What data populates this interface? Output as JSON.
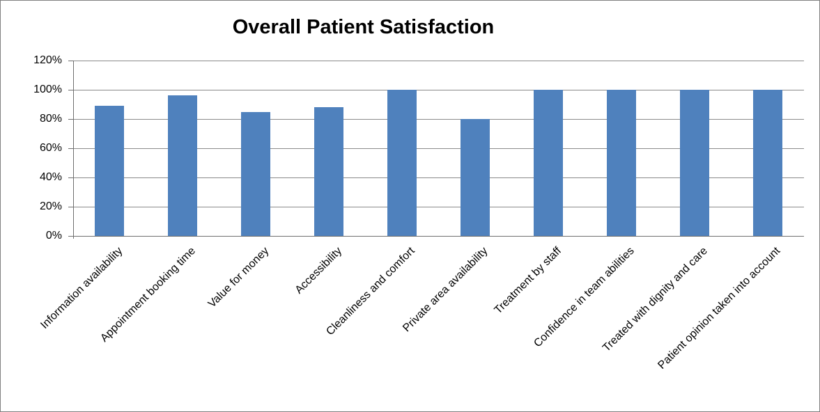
{
  "window": {
    "background": "#FFFFFF",
    "border_color": "#808080"
  },
  "chart_data": {
    "type": "bar",
    "title": "Overall Patient Satisfaction",
    "categories": [
      "Information availability",
      "Appointment booking time",
      "Value for money",
      "Accessibility",
      "Cleanliness and comfort",
      "Private area availability",
      "Treatment by staff",
      "Confidence in team abilities",
      "Treated with dignity and care",
      "Patient opinion taken into account"
    ],
    "values": [
      89,
      96,
      85,
      88,
      100,
      80,
      100,
      100,
      100,
      100
    ],
    "value_unit": "%",
    "xlabel": "",
    "ylabel": "",
    "ylim": [
      0,
      120
    ],
    "yticks": [
      0,
      20,
      40,
      60,
      80,
      100,
      120
    ],
    "ytick_labels": [
      "0%",
      "20%",
      "40%",
      "60%",
      "80%",
      "100%",
      "120%"
    ],
    "grid": "horizontal",
    "legend": "none",
    "x_label_rotation_deg": -45,
    "bar_color": "#4F81BD",
    "gridline_color": "#8A8A8A",
    "axis_color": "#6E6E6E",
    "text_color": "#000000"
  }
}
